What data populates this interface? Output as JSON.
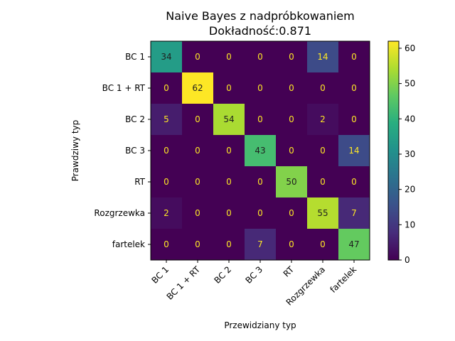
{
  "chart_data": {
    "type": "heatmap",
    "title": "Naive Bayes z nadpróbkowaniem",
    "subtitle": "Dokładność:0.871",
    "xlabel": "Przewidziany typ",
    "ylabel": "Prawdziwy typ",
    "row_labels": [
      "BC 1",
      "BC 1 + RT",
      "BC 2",
      "BC 3",
      "RT",
      "Rozgrzewka",
      "fartelek"
    ],
    "col_labels": [
      "BC 1",
      "BC 1 + RT",
      "BC 2",
      "BC 3",
      "RT",
      "Rozgrzewka",
      "fartelek"
    ],
    "values": [
      [
        34,
        0,
        0,
        0,
        0,
        14,
        0
      ],
      [
        0,
        62,
        0,
        0,
        0,
        0,
        0
      ],
      [
        5,
        0,
        54,
        0,
        0,
        2,
        0
      ],
      [
        0,
        0,
        0,
        43,
        0,
        0,
        14
      ],
      [
        0,
        0,
        0,
        0,
        50,
        0,
        0
      ],
      [
        2,
        0,
        0,
        0,
        0,
        55,
        7
      ],
      [
        0,
        0,
        0,
        7,
        0,
        0,
        47
      ]
    ],
    "colormap": "viridis",
    "colorbar": {
      "min": 0,
      "max": 62,
      "ticks": [
        "0",
        "10",
        "20",
        "30",
        "40",
        "50",
        "60"
      ],
      "tick_values": [
        0,
        10,
        20,
        30,
        40,
        50,
        60
      ]
    },
    "grid": false,
    "text_colors": {
      "dark": "#fde725",
      "light": "#1f1f1f"
    }
  }
}
